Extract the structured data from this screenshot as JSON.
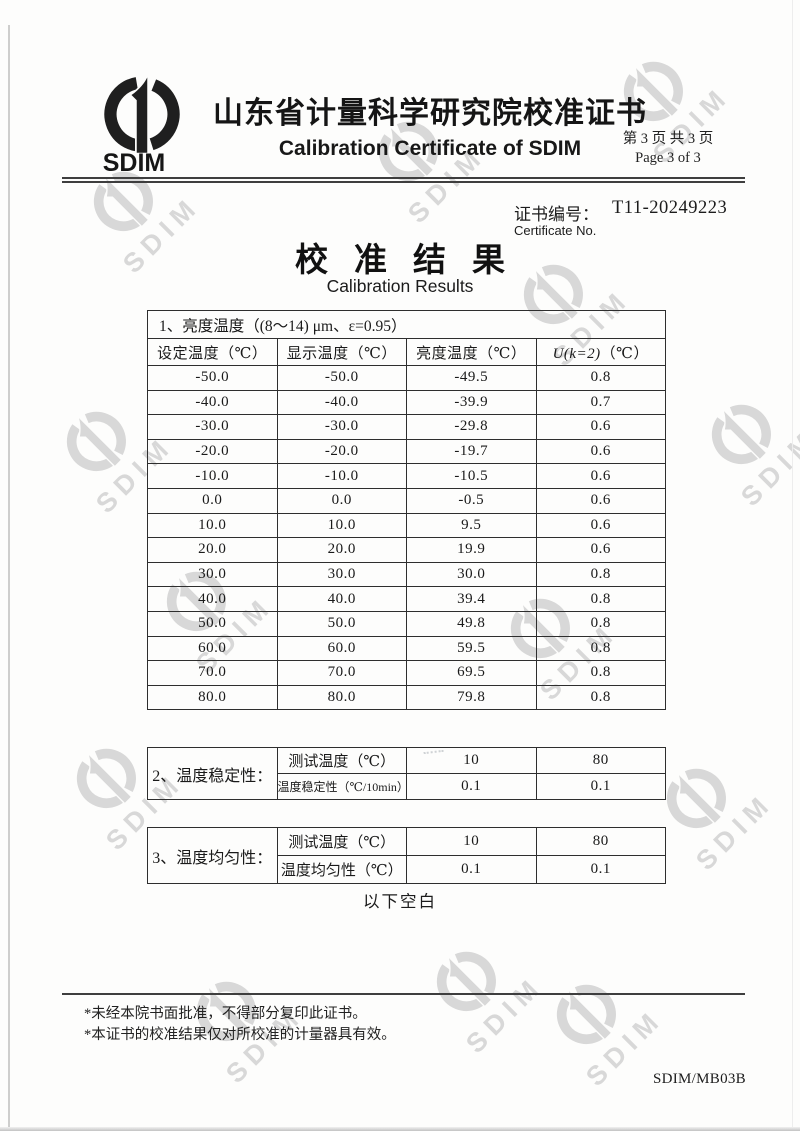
{
  "page": {
    "logo": {
      "text": "SDIM"
    },
    "title_cn": "山东省计量科学研究院校准证书",
    "title_en": "Calibration Certificate of SDIM",
    "page_number_cn": "第 3 页 共 3 页",
    "page_number_en": "Page 3 of 3",
    "certificate_no": {
      "label_cn": "证书编号：",
      "label_en": "Certificate No.",
      "value": "T11-20249223"
    },
    "section": {
      "title_cn": "校准结果",
      "title_en": "Calibration Results"
    },
    "end_of_results": "以下空白",
    "footnotes": [
      "*未经本院书面批准，不得部分复印此证书。",
      "*本证书的校准结果仅对所校准的计量器具有效。"
    ],
    "form_code": "SDIM/MB03B",
    "watermark_text": "SDIM"
  },
  "brightness_table": {
    "title": "1、亮度温度（(8～14) μm、ε=0.95）",
    "headers": [
      "设定温度（℃）",
      "显示温度（℃）",
      "亮度温度（℃）"
    ],
    "header_u_symbol": "U(k=2)",
    "header_u_unit": "（℃）",
    "rows": [
      [
        "-50.0",
        "-50.0",
        "-49.5",
        "0.8"
      ],
      [
        "-40.0",
        "-40.0",
        "-39.9",
        "0.7"
      ],
      [
        "-30.0",
        "-30.0",
        "-29.8",
        "0.6"
      ],
      [
        "-20.0",
        "-20.0",
        "-19.7",
        "0.6"
      ],
      [
        "-10.0",
        "-10.0",
        "-10.5",
        "0.6"
      ],
      [
        "0.0",
        "0.0",
        "-0.5",
        "0.6"
      ],
      [
        "10.0",
        "10.0",
        "9.5",
        "0.6"
      ],
      [
        "20.0",
        "20.0",
        "19.9",
        "0.6"
      ],
      [
        "30.0",
        "30.0",
        "30.0",
        "0.8"
      ],
      [
        "40.0",
        "40.0",
        "39.4",
        "0.8"
      ],
      [
        "50.0",
        "50.0",
        "49.8",
        "0.8"
      ],
      [
        "60.0",
        "60.0",
        "59.5",
        "0.8"
      ],
      [
        "70.0",
        "70.0",
        "69.5",
        "0.8"
      ],
      [
        "80.0",
        "80.0",
        "79.8",
        "0.8"
      ]
    ]
  },
  "stability_table": {
    "label": "2、温度稳定性：",
    "row1": {
      "name": "测试温度（℃）",
      "v1": "10",
      "v2": "80"
    },
    "row2": {
      "name": "温度稳定性（℃/10min）",
      "v1": "0.1",
      "v2": "0.1"
    }
  },
  "uniformity_table": {
    "label": "3、温度均匀性：",
    "row1": {
      "name": "测试温度（℃）",
      "v1": "10",
      "v2": "80"
    },
    "row2": {
      "name": "温度均匀性（℃）",
      "v1": "0.1",
      "v2": "0.1"
    }
  }
}
